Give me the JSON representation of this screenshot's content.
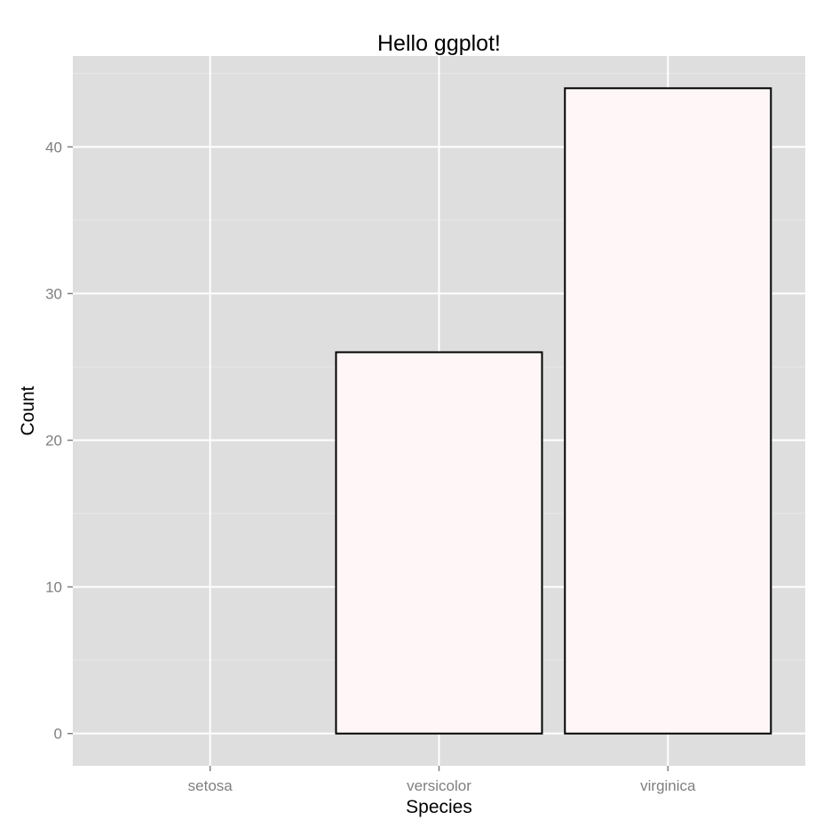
{
  "colors": {
    "panel": "#dedede",
    "grid_major": "#ffffff",
    "grid_minor": "#e8e8e8",
    "bar_fill": "#fff7f7",
    "bar_stroke": "#000000",
    "tick_text": "#7f7f7f",
    "title_text": "#000000"
  },
  "chart_data": {
    "type": "bar",
    "title": "Hello ggplot!",
    "xlabel": "Species",
    "ylabel": "Count",
    "categories": [
      "setosa",
      "versicolor",
      "virginica"
    ],
    "values": [
      0,
      26,
      44
    ],
    "ylim": [
      -2.2,
      46.2
    ],
    "yticks": [
      0,
      10,
      20,
      30,
      40
    ],
    "yticks_minor": [
      5,
      15,
      25,
      35,
      45
    ],
    "grid": true,
    "legend": "none"
  }
}
